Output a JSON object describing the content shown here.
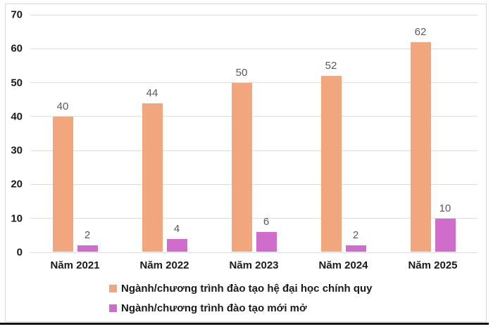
{
  "chart_data": {
    "type": "bar",
    "categories": [
      "Năm 2021",
      "Năm 2022",
      "Năm 2023",
      "Năm 2024",
      "Năm 2025"
    ],
    "series": [
      {
        "name": "Ngành/chương trình đào tạo hệ đại học chính quy",
        "values": [
          40,
          44,
          50,
          52,
          62
        ],
        "color": "#F2A67E"
      },
      {
        "name": "Ngành/chương trình đào tạo mới mở",
        "values": [
          2,
          4,
          6,
          2,
          10
        ],
        "color": "#D06CCC"
      }
    ],
    "title": "",
    "xlabel": "",
    "ylabel": "",
    "ylim": [
      0,
      70
    ],
    "yticks": [
      0,
      10,
      20,
      30,
      40,
      50,
      60,
      70
    ],
    "grid": true,
    "legend_position": "bottom-left",
    "data_labels": true
  },
  "colors": {
    "background": "#FFFFFF",
    "gridline": "#DDDDDD",
    "frame_border": "#D9D9D9",
    "bottom_rule": "#111118",
    "axis_text": "#1A1A1A",
    "data_label_text": "#595959"
  }
}
